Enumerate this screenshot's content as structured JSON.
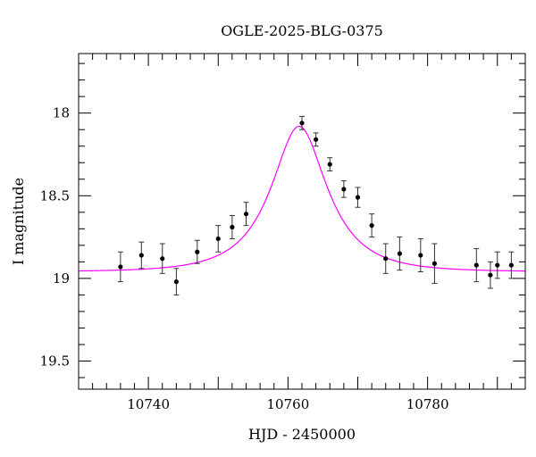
{
  "chart_data": {
    "type": "scatter",
    "title": "OGLE-2025-BLG-0375",
    "xlabel": "HJD - 2450000",
    "ylabel": "I magnitude",
    "xlim": [
      10730,
      10794
    ],
    "ylim": [
      19.67,
      17.64
    ],
    "y_inverted": true,
    "x_ticks": [
      10740,
      10760,
      10780
    ],
    "x_tick_labels": [
      "10740",
      "10760",
      "10780"
    ],
    "y_ticks": [
      18,
      18.5,
      19,
      19.5
    ],
    "y_tick_labels": [
      "18",
      "18.5",
      "19",
      "19.5"
    ],
    "grid": false,
    "colors": {
      "model": "#ff00ff",
      "points": "#000000",
      "axes": "#000000"
    },
    "series": [
      {
        "type": "scatter_errorbar",
        "x": [
          10736,
          10739,
          10742,
          10744,
          10747,
          10750,
          10752,
          10754,
          10762,
          10764,
          10766,
          10768,
          10770,
          10772,
          10774,
          10776,
          10779,
          10781,
          10787,
          10789,
          10790,
          10792
        ],
        "y": [
          18.93,
          18.86,
          18.88,
          19.02,
          18.84,
          18.76,
          18.69,
          18.61,
          18.06,
          18.16,
          18.31,
          18.46,
          18.51,
          18.68,
          18.88,
          18.85,
          18.86,
          18.91,
          18.92,
          18.98,
          18.92,
          18.92
        ],
        "err": [
          0.09,
          0.08,
          0.09,
          0.08,
          0.07,
          0.08,
          0.07,
          0.07,
          0.04,
          0.04,
          0.04,
          0.05,
          0.06,
          0.07,
          0.09,
          0.1,
          0.1,
          0.12,
          0.1,
          0.08,
          0.08,
          0.08
        ]
      },
      {
        "type": "model_curve",
        "baseline": 18.96,
        "peak_x": 10761.6,
        "peak_mag": 18.08,
        "u0": 0.55,
        "tE": 7.8
      }
    ]
  }
}
